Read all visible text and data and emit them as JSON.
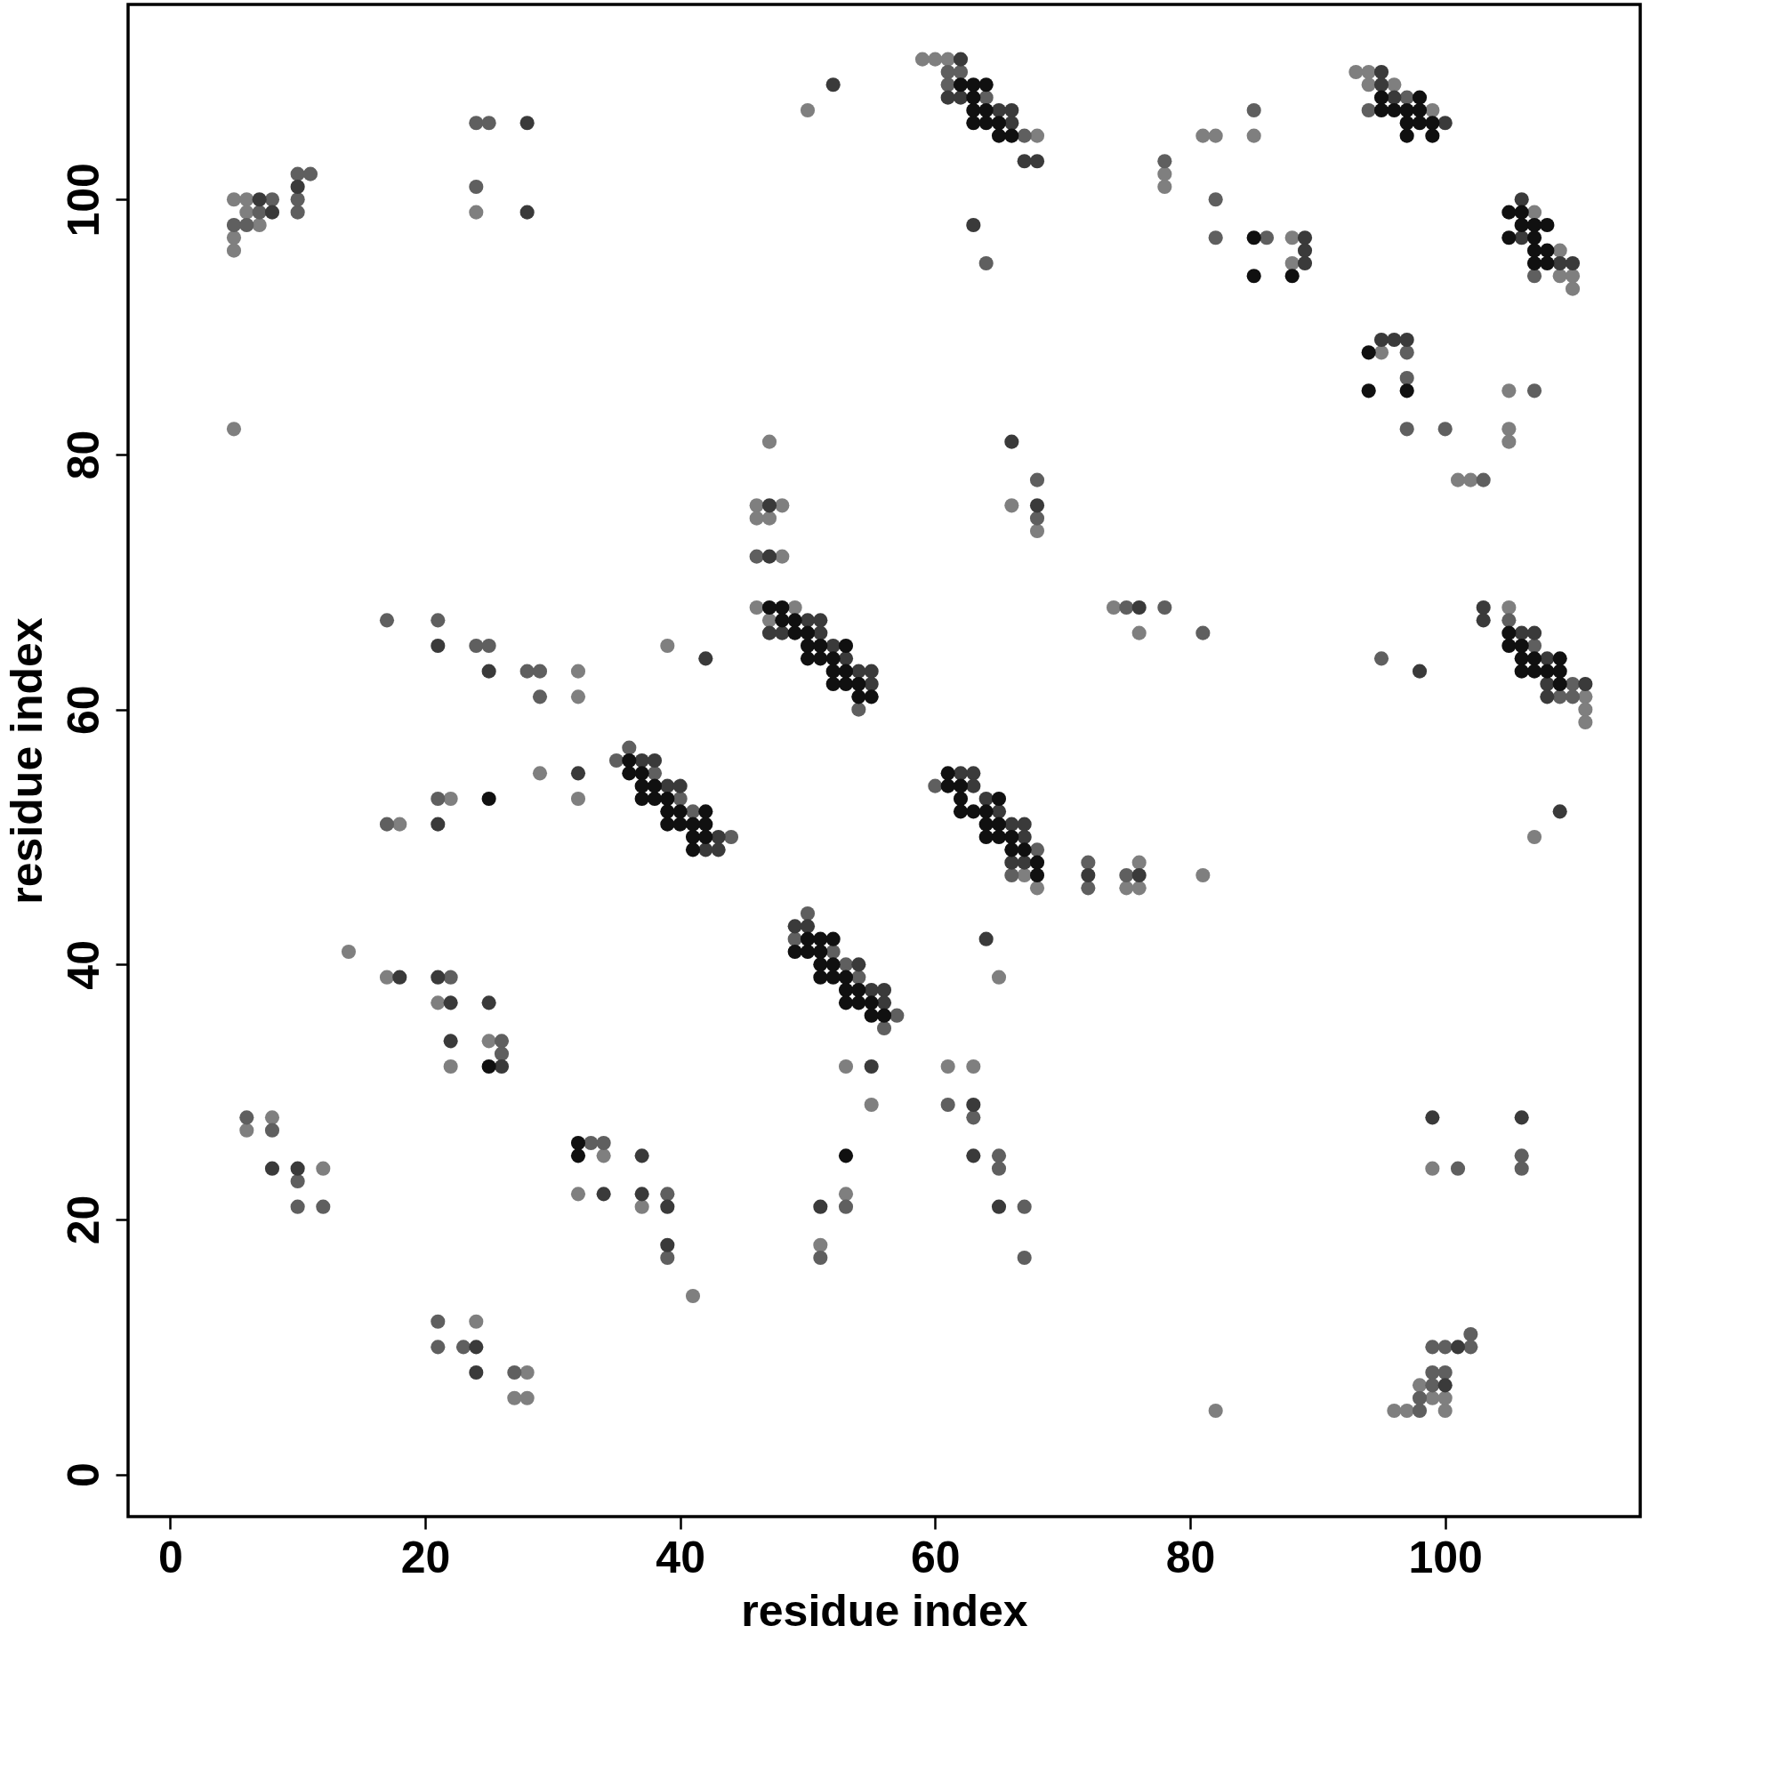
{
  "chart_data": {
    "type": "scatter",
    "xlabel": "residue index",
    "ylabel": "residue index",
    "xlim": [
      -3.3,
      115.3
    ],
    "ylim": [
      -3.3,
      115.3
    ],
    "xticks": [
      0,
      20,
      40,
      60,
      80,
      100
    ],
    "yticks": [
      0,
      20,
      40,
      60,
      80,
      100
    ],
    "grid": false,
    "legend": false,
    "marker": "circle",
    "series": [
      {
        "color": "#7f7f7f",
        "x": [
          5,
          6,
          6,
          7,
          5,
          5,
          24,
          5,
          32,
          32,
          59,
          60,
          61,
          50,
          68,
          47,
          48,
          66,
          46,
          46,
          47,
          68,
          48,
          46,
          49,
          74,
          47,
          76,
          39,
          93,
          94,
          94,
          96,
          99,
          85,
          81,
          82,
          78,
          78,
          107,
          88,
          109,
          88,
          109,
          110,
          110,
          95,
          105,
          105,
          105,
          101,
          102,
          105,
          111,
          111,
          111,
          29,
          22,
          32,
          18,
          14,
          17,
          21,
          25,
          22,
          8,
          6,
          12,
          34,
          32,
          24,
          28,
          27,
          28,
          68,
          76,
          75,
          76,
          65,
          53,
          61,
          63,
          55,
          53,
          37,
          51,
          41,
          107,
          81,
          99,
          98,
          99,
          100,
          82,
          96,
          97,
          100,
          67
        ],
        "values": [
          100,
          100,
          99,
          98,
          97,
          96,
          99,
          82,
          63,
          61,
          111,
          111,
          111,
          107,
          105,
          81,
          76,
          76,
          76,
          75,
          75,
          74,
          72,
          68,
          68,
          68,
          67,
          66,
          65,
          110,
          110,
          109,
          109,
          107,
          105,
          105,
          105,
          102,
          101,
          99,
          97,
          96,
          95,
          94,
          94,
          93,
          88,
          85,
          82,
          81,
          78,
          78,
          68,
          61,
          60,
          59,
          55,
          53,
          53,
          51,
          41,
          39,
          37,
          34,
          32,
          28,
          27,
          24,
          25,
          22,
          12,
          8,
          6,
          6,
          46,
          48,
          46,
          46,
          39,
          32,
          32,
          32,
          29,
          22,
          21,
          18,
          14,
          50,
          47,
          24,
          7,
          6,
          6,
          5,
          5,
          5,
          5,
          47
        ]
      },
      {
        "color": "#5f5f5f",
        "x": [
          8,
          7,
          5,
          6,
          10,
          10,
          11,
          10,
          24,
          25,
          24,
          17,
          21,
          24,
          25,
          28,
          29,
          29,
          61,
          62,
          61,
          64,
          67,
          64,
          68,
          68,
          46,
          75,
          54,
          94,
          97,
          85,
          78,
          82,
          82,
          86,
          107,
          97,
          97,
          107,
          97,
          100,
          103,
          78,
          105,
          81,
          107,
          95,
          110,
          109,
          110,
          35,
          36,
          38,
          40,
          41,
          44,
          21,
          17,
          22,
          26,
          26,
          6,
          8,
          10,
          10,
          12,
          33,
          34,
          21,
          21,
          23,
          27,
          60,
          68,
          72,
          75,
          72,
          66,
          50,
          49,
          52,
          53,
          54,
          57,
          56,
          61,
          63,
          65,
          65,
          39,
          53,
          67,
          39,
          51,
          67,
          106,
          101,
          106,
          102,
          99,
          100,
          102,
          99,
          100,
          99,
          98,
          98
        ],
        "values": [
          100,
          99,
          98,
          98,
          99,
          102,
          102,
          100,
          106,
          106,
          101,
          67,
          67,
          65,
          65,
          63,
          63,
          61,
          110,
          110,
          109,
          108,
          105,
          95,
          78,
          75,
          72,
          68,
          60,
          107,
          108,
          107,
          103,
          100,
          97,
          97,
          94,
          88,
          86,
          85,
          82,
          82,
          78,
          68,
          67,
          66,
          65,
          64,
          62,
          61,
          61,
          56,
          57,
          55,
          53,
          52,
          50,
          53,
          51,
          39,
          34,
          33,
          28,
          27,
          23,
          21,
          21,
          26,
          26,
          12,
          10,
          10,
          8,
          54,
          49,
          48,
          47,
          46,
          47,
          44,
          42,
          41,
          40,
          39,
          36,
          35,
          29,
          28,
          25,
          24,
          22,
          21,
          21,
          17,
          17,
          17,
          25,
          24,
          24,
          11,
          10,
          10,
          10,
          8,
          8,
          7,
          6,
          5
        ]
      },
      {
        "color": "#3a3a3a",
        "x": [
          7,
          8,
          10,
          28,
          28,
          21,
          25,
          62,
          52,
          61,
          62,
          65,
          66,
          66,
          67,
          68,
          63,
          66,
          47,
          68,
          47,
          76,
          51,
          50,
          47,
          48,
          51,
          52,
          42,
          53,
          54,
          55,
          55,
          95,
          95,
          96,
          100,
          106,
          106,
          89,
          89,
          89,
          109,
          110,
          95,
          96,
          97,
          103,
          103,
          106,
          107,
          108,
          98,
          108,
          111,
          108,
          37,
          38,
          39,
          40,
          43,
          42,
          43,
          32,
          21,
          18,
          21,
          22,
          25,
          22,
          26,
          8,
          10,
          37,
          34,
          37,
          24,
          24,
          62,
          63,
          63,
          64,
          65,
          66,
          67,
          67,
          66,
          67,
          72,
          76,
          49,
          50,
          64,
          54,
          55,
          56,
          56,
          55,
          63,
          63,
          39,
          51,
          65,
          39,
          109,
          99,
          106,
          101,
          100
        ],
        "values": [
          100,
          99,
          101,
          106,
          99,
          65,
          63,
          111,
          109,
          108,
          108,
          107,
          107,
          106,
          103,
          103,
          98,
          81,
          76,
          76,
          72,
          68,
          67,
          67,
          66,
          66,
          66,
          65,
          64,
          64,
          63,
          63,
          62,
          110,
          109,
          108,
          106,
          100,
          97,
          97,
          96,
          95,
          95,
          95,
          89,
          89,
          89,
          68,
          67,
          66,
          66,
          64,
          63,
          62,
          62,
          61,
          56,
          56,
          54,
          54,
          50,
          49,
          49,
          55,
          51,
          39,
          39,
          37,
          37,
          34,
          32,
          24,
          24,
          25,
          22,
          22,
          10,
          8,
          55,
          55,
          54,
          53,
          52,
          51,
          51,
          50,
          48,
          48,
          47,
          47,
          43,
          43,
          42,
          40,
          38,
          38,
          37,
          32,
          29,
          25,
          21,
          21,
          21,
          18,
          52,
          28,
          28,
          10,
          7
        ]
      },
      {
        "color": "#101010",
        "x": [
          62,
          63,
          64,
          63,
          63,
          64,
          63,
          64,
          65,
          65,
          66,
          47,
          48,
          48,
          49,
          49,
          50,
          50,
          51,
          53,
          50,
          51,
          52,
          52,
          53,
          52,
          53,
          54,
          54,
          55,
          95,
          98,
          95,
          96,
          97,
          98,
          97,
          98,
          99,
          97,
          99,
          105,
          106,
          106,
          107,
          108,
          85,
          105,
          107,
          107,
          108,
          107,
          108,
          85,
          88,
          94,
          94,
          97,
          105,
          105,
          106,
          106,
          107,
          109,
          106,
          107,
          108,
          109,
          109,
          36,
          36,
          37,
          37,
          38,
          37,
          38,
          39,
          39,
          40,
          42,
          39,
          40,
          41,
          42,
          41,
          42,
          41,
          25,
          25,
          32,
          32,
          61,
          61,
          62,
          62,
          65,
          62,
          63,
          64,
          64,
          65,
          64,
          65,
          66,
          66,
          67,
          68,
          68,
          50,
          51,
          52,
          49,
          50,
          51,
          51,
          52,
          51,
          52,
          53,
          53,
          54,
          53,
          54,
          55,
          55,
          56,
          53
        ],
        "values": [
          109,
          109,
          109,
          108,
          107,
          107,
          106,
          106,
          106,
          105,
          105,
          68,
          68,
          67,
          67,
          66,
          66,
          65,
          65,
          65,
          64,
          64,
          64,
          63,
          63,
          62,
          62,
          62,
          61,
          61,
          108,
          108,
          107,
          107,
          107,
          107,
          106,
          106,
          106,
          105,
          105,
          99,
          99,
          98,
          98,
          98,
          97,
          97,
          97,
          96,
          96,
          95,
          95,
          94,
          94,
          88,
          85,
          85,
          66,
          65,
          65,
          64,
          64,
          64,
          63,
          63,
          63,
          63,
          62,
          56,
          55,
          55,
          54,
          54,
          53,
          53,
          53,
          52,
          52,
          52,
          51,
          51,
          51,
          51,
          50,
          50,
          49,
          53,
          32,
          26,
          25,
          55,
          54,
          54,
          53,
          53,
          52,
          52,
          52,
          51,
          51,
          50,
          50,
          50,
          49,
          49,
          48,
          47,
          42,
          42,
          42,
          41,
          41,
          41,
          40,
          40,
          39,
          39,
          39,
          38,
          38,
          37,
          37,
          37,
          36,
          36,
          25
        ]
      }
    ]
  }
}
